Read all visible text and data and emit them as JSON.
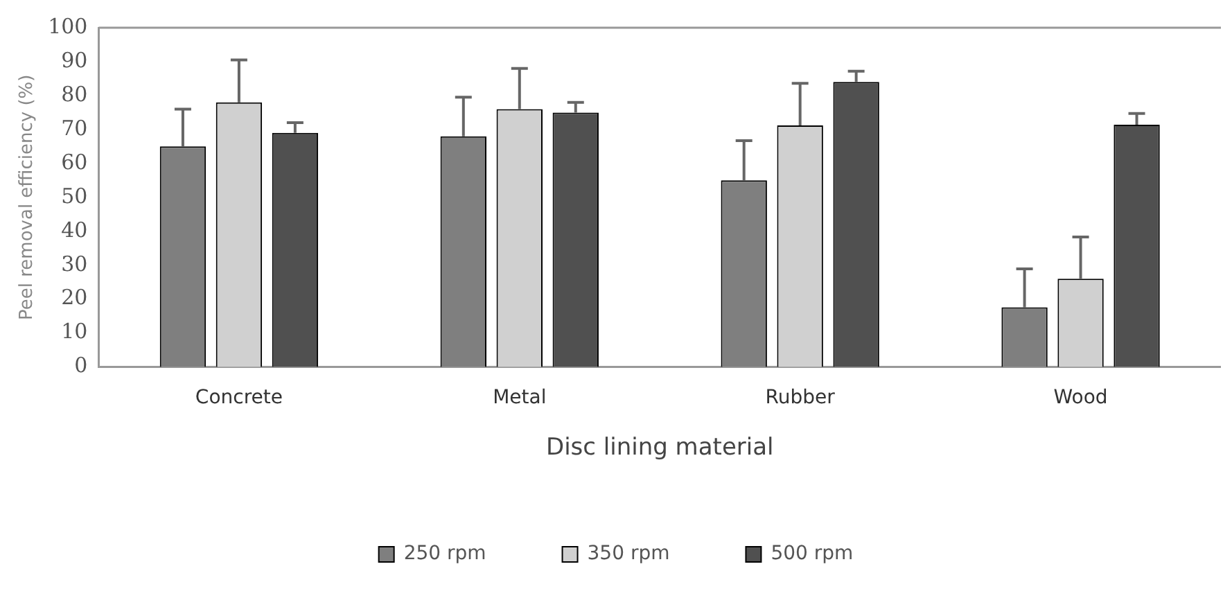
{
  "chart_data": {
    "type": "bar",
    "xlabel": "Disc lining material",
    "ylabel": "Peel removal efficiency (%)",
    "categories": [
      "Concrete",
      "Metal",
      "Rubber",
      "Wood"
    ],
    "series": [
      {
        "name": "250 rpm",
        "color": "#7f7f7f",
        "values": [
          65,
          68,
          55,
          17.6
        ],
        "errors": [
          [
            65,
            76
          ],
          [
            68,
            79.5
          ],
          [
            55,
            66.7
          ],
          [
            17.6,
            28.9
          ]
        ]
      },
      {
        "name": "350 rpm",
        "color": "#d0d0d0",
        "values": [
          78,
          76,
          71.2,
          26
        ],
        "errors": [
          [
            78,
            90.5
          ],
          [
            76,
            88
          ],
          [
            71.2,
            83.6
          ],
          [
            26,
            38.3
          ]
        ]
      },
      {
        "name": "500 rpm",
        "color": "#505050",
        "values": [
          69,
          75,
          84,
          71.4
        ],
        "errors": [
          [
            69,
            72
          ],
          [
            75,
            78
          ],
          [
            84,
            87.2
          ],
          [
            71.4,
            74.7
          ]
        ]
      }
    ],
    "ylim": [
      0,
      100
    ],
    "yticks": [
      0,
      10,
      20,
      30,
      40,
      50,
      60,
      70,
      80,
      90,
      100
    ],
    "grid": false,
    "legend": "bottom"
  }
}
